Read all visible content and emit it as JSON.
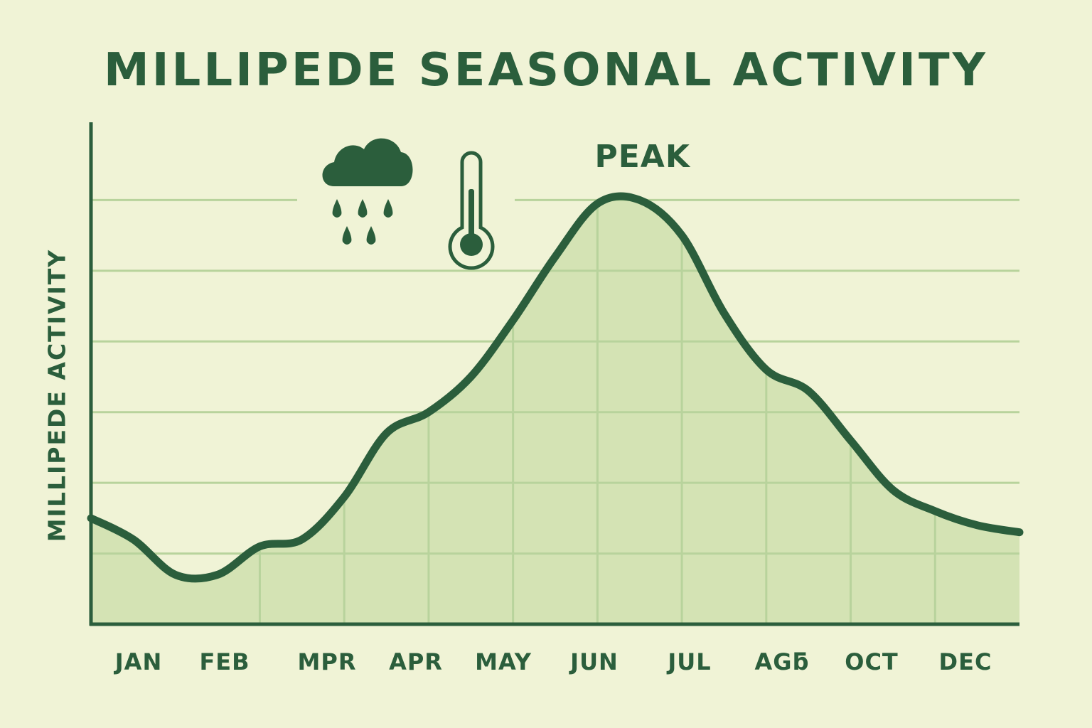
{
  "chart_data": {
    "type": "area",
    "title": "MILLIPEDE SEASONAL ACTIVITY",
    "ylabel": "MILLIPEDE ACTIVITY",
    "xlabel": "",
    "categories": [
      "JAN",
      "FEB",
      "MPR",
      "APR",
      "MAY",
      "JUN",
      "JUL",
      "AGƃ",
      "OCT",
      "DEC"
    ],
    "x": [
      0,
      0.5,
      1,
      1.5,
      2,
      2.5,
      3,
      3.5,
      4,
      4.5,
      5,
      5.5,
      6,
      6.5,
      7,
      7.5,
      8,
      8.5,
      9,
      9.5,
      10,
      10.5,
      11
    ],
    "values": [
      1.5,
      1.2,
      0.7,
      0.7,
      1.1,
      1.2,
      1.8,
      2.7,
      3.0,
      3.5,
      4.3,
      5.2,
      5.95,
      6.0,
      5.5,
      4.4,
      3.6,
      3.3,
      2.6,
      1.9,
      1.6,
      1.4,
      1.3
    ],
    "ylim": [
      0,
      7
    ],
    "xlim": [
      0,
      11
    ],
    "grid": true,
    "legend": "none",
    "annotations": [
      {
        "text": "PEAK",
        "x": 6.5,
        "y": 6.0
      }
    ],
    "icons": [
      "rain-cloud-icon",
      "thermometer-icon"
    ],
    "colors": {
      "line": "#2b5e3c",
      "fill": "#d4e3b4",
      "grid": "#b8d39c",
      "background": "#f0f3d6"
    }
  }
}
